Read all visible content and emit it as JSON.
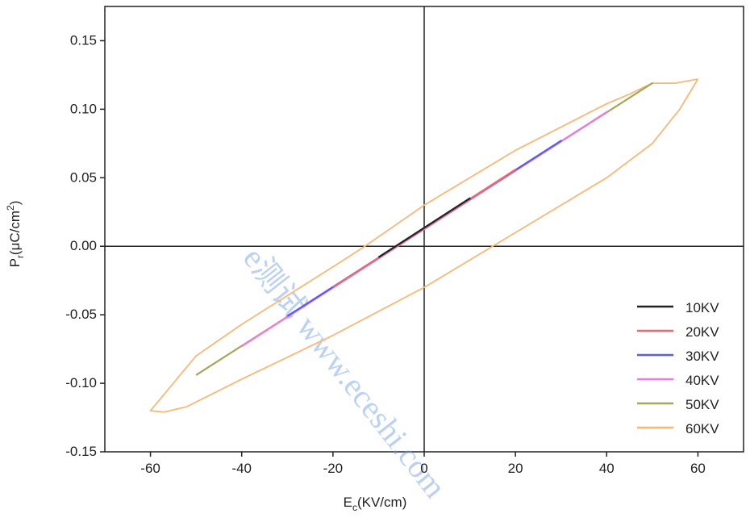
{
  "chart_data": {
    "type": "line",
    "x_label": {
      "main": "E",
      "sub": "c",
      "rest": "(KV/cm)"
    },
    "y_label": {
      "main": "P",
      "sub": "r",
      "rest": "(μC/cm",
      "sup": "2",
      "end": ")"
    },
    "watermark": "e测试 www.eceshi.com",
    "xlim": [
      -70,
      70
    ],
    "ylim": [
      -0.15,
      0.175
    ],
    "xticks": [
      -60,
      -40,
      -20,
      0,
      20,
      40,
      60
    ],
    "yticks": [
      -0.15,
      {
        "value": -0.1,
        "label": "-0.10"
      },
      -0.05,
      {
        "value": 0,
        "label": "0.00"
      },
      0.05,
      {
        "value": 0.1,
        "label": "0.10"
      },
      0.15
    ],
    "legend": "right",
    "series": [
      {
        "name": "10KV",
        "color": "#222222",
        "x": [
          -10,
          10,
          -10
        ],
        "values": [
          -0.008,
          0.035,
          -0.008
        ]
      },
      {
        "name": "20KV",
        "color": "#ee6a6a",
        "x": [
          -20,
          20,
          -20
        ],
        "values": [
          -0.03,
          0.056,
          -0.03
        ]
      },
      {
        "name": "30KV",
        "color": "#5a5af0",
        "x": [
          -30,
          30,
          -30
        ],
        "values": [
          -0.051,
          0.077,
          -0.051
        ]
      },
      {
        "name": "40KV",
        "color": "#f07ae0",
        "x": [
          -40,
          40,
          -40
        ],
        "values": [
          -0.073,
          0.098,
          -0.073
        ]
      },
      {
        "name": "50KV",
        "color": "#a4a85a",
        "x": [
          -50,
          50,
          -50
        ],
        "values": [
          -0.094,
          0.119,
          -0.094
        ]
      },
      {
        "name": "60KV",
        "color": "#f8b878",
        "x": [
          60,
          55,
          50,
          45,
          40,
          20,
          0,
          -13,
          -20,
          -40,
          -50,
          -57,
          -60,
          -57,
          -52,
          -40,
          -20,
          0,
          15,
          20,
          40,
          50,
          56,
          60
        ],
        "values": [
          0.122,
          0.119,
          0.119,
          0.111,
          0.104,
          0.07,
          0.03,
          0,
          -0.015,
          -0.057,
          -0.08,
          -0.108,
          -0.12,
          -0.121,
          -0.117,
          -0.097,
          -0.065,
          -0.03,
          0,
          0.01,
          0.05,
          0.075,
          0.1,
          0.122
        ]
      }
    ]
  }
}
